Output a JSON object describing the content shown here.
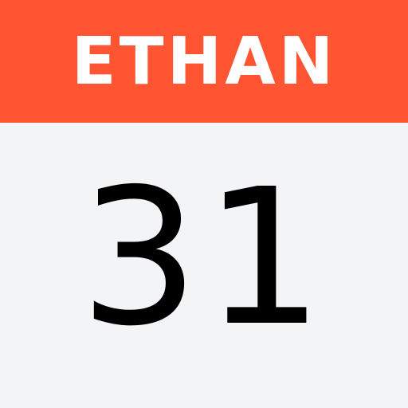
{
  "calendar": {
    "label": "ETHAN",
    "day": "31"
  },
  "colors": {
    "header_background": "#ff5533",
    "header_text": "#ffffff",
    "body_background": "#f3f4f6",
    "day_text": "#000000"
  }
}
